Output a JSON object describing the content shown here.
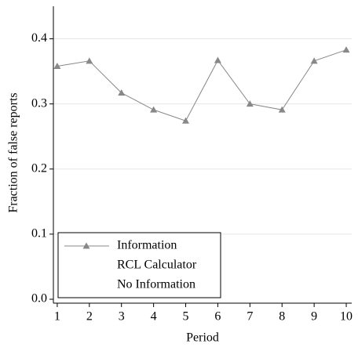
{
  "chart_data": {
    "type": "line",
    "x_label": "Period",
    "y_label": "Fraction of false reports",
    "x": [
      1,
      2,
      3,
      4,
      5,
      6,
      7,
      8,
      9,
      10
    ],
    "series": [
      {
        "name": "Information",
        "color": "#888888",
        "marker": "triangle",
        "values": [
          0.358,
          0.366,
          0.317,
          0.291,
          0.274,
          0.367,
          0.3,
          0.291,
          0.366,
          0.383
        ]
      },
      {
        "name": "RCL Calculator",
        "values": [
          null,
          null,
          null,
          null,
          null,
          null,
          null,
          null,
          null,
          null
        ]
      },
      {
        "name": "No Information",
        "values": [
          null,
          null,
          null,
          null,
          null,
          null,
          null,
          null,
          null,
          null
        ]
      }
    ],
    "xlim": [
      0.88,
      10.17
    ],
    "xticks": [
      1,
      2,
      3,
      4,
      5,
      6,
      7,
      8,
      9,
      10
    ],
    "ylim": [
      0,
      0.45
    ],
    "yticks": [
      {
        "value": 0,
        "label": "0.0"
      },
      0.1,
      0.2,
      0.3,
      0.4
    ],
    "grid": true,
    "legend": "lower left"
  }
}
